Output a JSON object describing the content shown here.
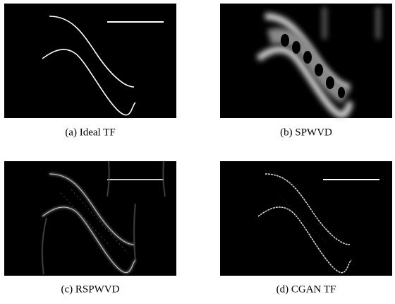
{
  "panels": [
    {
      "caption": "(a) Ideal TF"
    },
    {
      "caption": "(b) SPWVD"
    },
    {
      "caption": "(c) RSPWVD"
    },
    {
      "caption": "(d) CGAN TF"
    }
  ]
}
